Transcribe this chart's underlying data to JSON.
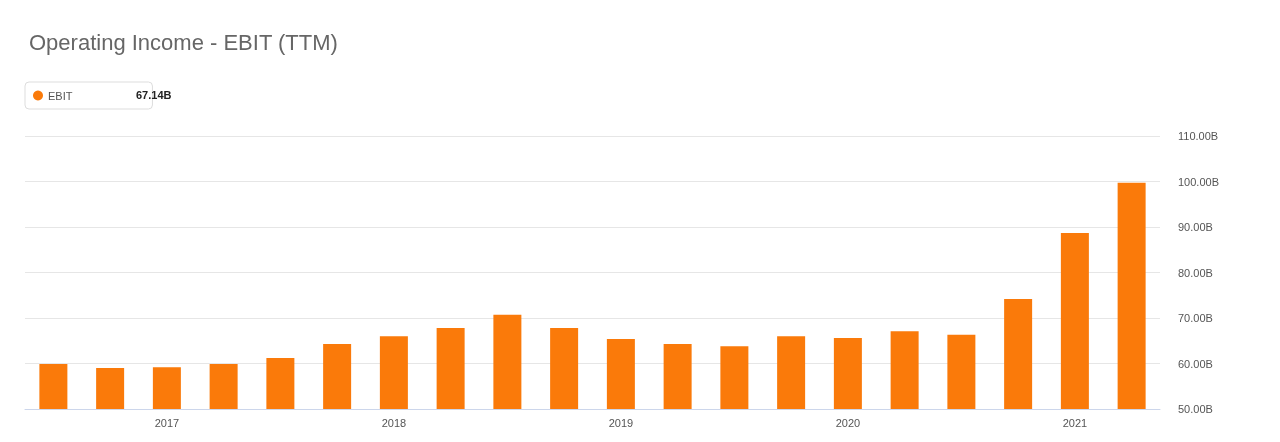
{
  "chart_data": {
    "type": "bar",
    "title": "Operating Income - EBIT (TTM)",
    "categories": [
      null,
      null,
      "2017",
      null,
      null,
      null,
      "2018",
      null,
      null,
      null,
      "2019",
      null,
      null,
      null,
      "2020",
      null,
      null,
      null,
      "2021",
      null
    ],
    "series": [
      {
        "name": "EBIT",
        "color": "#fa7a0a",
        "values": [
          59.9,
          59.0,
          59.2,
          59.9,
          61.2,
          64.3,
          66.0,
          67.8,
          70.7,
          67.8,
          65.4,
          64.3,
          63.8,
          66.0,
          65.6,
          67.1,
          66.3,
          74.2,
          88.7,
          99.7
        ]
      }
    ],
    "ylim": [
      50,
      110
    ],
    "yticks": [
      {
        "value": 50,
        "label": "50.00B"
      },
      {
        "value": 60,
        "label": "60.00B"
      },
      {
        "value": 70,
        "label": "70.00B"
      },
      {
        "value": 80,
        "label": "80.00B"
      },
      {
        "value": 90,
        "label": "90.00B"
      },
      {
        "value": 100,
        "label": "100.00B"
      },
      {
        "value": 110,
        "label": "110.00B"
      }
    ],
    "grid": "y",
    "legend": "top left",
    "annotations": [
      "67.14B"
    ]
  }
}
